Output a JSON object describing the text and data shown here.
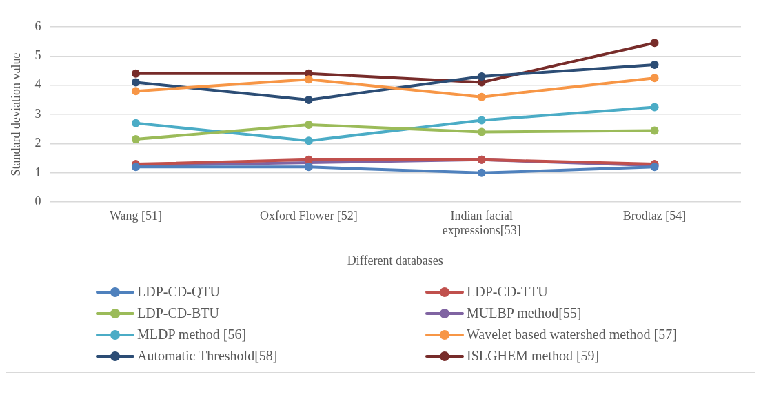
{
  "chart_data": {
    "type": "line",
    "xlabel": "Different databases",
    "ylabel": "Standard deviation value",
    "categories": [
      "Wang [51]",
      "Oxford Flower [52]",
      "Indian facial expressions[53]",
      "Brodtaz [54]"
    ],
    "ylim": [
      0,
      6
    ],
    "yticks": [
      0,
      1,
      2,
      3,
      4,
      5,
      6
    ],
    "grid": "y",
    "legend": "bottom",
    "marker": "circle",
    "line_style": "solid",
    "series": [
      {
        "name": "LDP-CD-QTU",
        "color": "#4f81bd",
        "values": [
          1.2,
          1.2,
          1.0,
          1.2
        ]
      },
      {
        "name": "LDP-CD-TTU",
        "color": "#c0504d",
        "values": [
          1.3,
          1.45,
          1.45,
          1.3
        ]
      },
      {
        "name": "LDP-CD-BTU",
        "color": "#9bbb59",
        "values": [
          2.15,
          2.65,
          2.4,
          2.45
        ]
      },
      {
        "name": "MULBP method[55]",
        "color": "#8064a2",
        "values": [
          1.25,
          1.35,
          1.45,
          1.25
        ]
      },
      {
        "name": "MLDP method [56]",
        "color": "#4bacc6",
        "values": [
          2.7,
          2.1,
          2.8,
          3.25
        ]
      },
      {
        "name": "Wavelet based watershed method [57]",
        "color": "#f79646",
        "values": [
          3.8,
          4.2,
          3.6,
          4.25
        ]
      },
      {
        "name": "Automatic Threshold[58]",
        "color": "#2c4d75",
        "values": [
          4.1,
          3.5,
          4.3,
          4.7
        ]
      },
      {
        "name": "ISLGHEM method [59]",
        "color": "#772c2a",
        "values": [
          4.4,
          4.4,
          4.1,
          5.45
        ]
      }
    ]
  }
}
